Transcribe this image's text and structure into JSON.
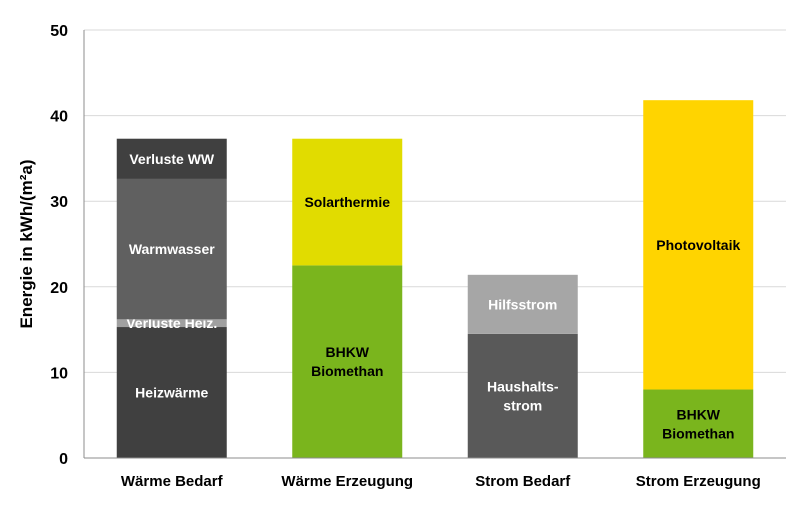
{
  "chart_data": {
    "type": "bar",
    "stacked": true,
    "title": "",
    "xlabel": "",
    "ylabel": "Energie in kWh/(m²a)",
    "ylim": [
      0,
      50
    ],
    "yticks": [
      0,
      10,
      20,
      30,
      40,
      50
    ],
    "grid": true,
    "legend": "none",
    "categories": [
      "Wärme Bedarf",
      "Wärme Erzeugung",
      "Strom Bedarf",
      "Strom Erzeugung"
    ],
    "bars": [
      {
        "category": "Wärme Bedarf",
        "segments": [
          {
            "label": "Heizwärme",
            "value": 15.3,
            "color": "#404040",
            "text_color": "#ffffff"
          },
          {
            "label": "Verluste Heiz.",
            "value": 0.9,
            "color": "#a0a0a0",
            "text_color": "#ffffff"
          },
          {
            "label": "Warmwasser",
            "value": 16.4,
            "color": "#606060",
            "text_color": "#ffffff"
          },
          {
            "label": "Verluste WW",
            "value": 4.7,
            "color": "#404040",
            "text_color": "#ffffff"
          }
        ]
      },
      {
        "category": "Wärme Erzeugung",
        "segments": [
          {
            "label": "BHKW\nBiomethan",
            "value": 22.5,
            "color": "#7ab51d",
            "text_color": "#000000"
          },
          {
            "label": "Solarthermie",
            "value": 14.8,
            "color": "#e1dc00",
            "text_color": "#000000"
          }
        ]
      },
      {
        "category": "Strom Bedarf",
        "segments": [
          {
            "label": "Haushalts-\nstrom",
            "value": 14.5,
            "color": "#595959",
            "text_color": "#ffffff"
          },
          {
            "label": "Hilfsstrom",
            "value": 6.9,
            "color": "#a6a6a6",
            "text_color": "#ffffff"
          }
        ]
      },
      {
        "category": "Strom Erzeugung",
        "segments": [
          {
            "label": "BHKW\nBiomethan",
            "value": 8.0,
            "color": "#7ab51d",
            "text_color": "#000000"
          },
          {
            "label": "Photovoltaik",
            "value": 33.8,
            "color": "#ffd400",
            "text_color": "#000000"
          }
        ]
      }
    ]
  }
}
